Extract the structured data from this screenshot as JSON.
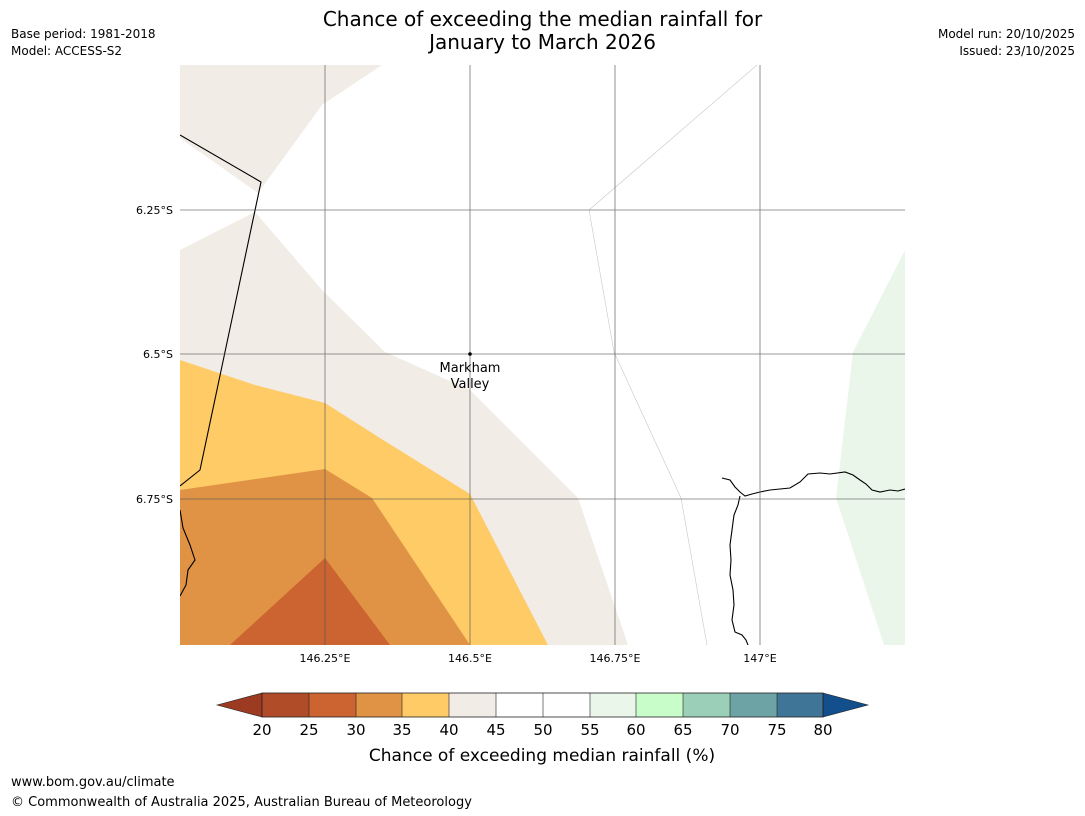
{
  "header": {
    "title_line1": "Chance of exceeding the median rainfall for",
    "title_line2": "January to March 2026",
    "base_period": "Base period: 1981-2018",
    "model": "Model: ACCESS-S2",
    "model_run": "Model run: 20/10/2025",
    "issued": "Issued: 23/10/2025"
  },
  "map": {
    "place_label_line1": "Markham",
    "place_label_line2": "Valley",
    "lat_ticks": [
      "6.25°S",
      "6.5°S",
      "6.75°S"
    ],
    "lon_ticks": [
      "146.25°E",
      "146.5°E",
      "146.75°E",
      "147°E"
    ]
  },
  "legend": {
    "title": "Chance of exceeding median rainfall (%)",
    "ticks": [
      "20",
      "25",
      "30",
      "35",
      "40",
      "45",
      "50",
      "55",
      "60",
      "65",
      "70",
      "75",
      "80"
    ],
    "colors": {
      "below_20": "#9c3a22",
      "c20_25": "#b04c28",
      "c25_30": "#cc6431",
      "c30_35": "#e09345",
      "c35_40": "#fecb66",
      "c40_45": "#f1ece6",
      "c45_50": "#ffffff",
      "c50_55": "#ffffff",
      "c55_60": "#eaf6ea",
      "c60_65": "#c8fcc8",
      "c65_70": "#9ccfb8",
      "c70_75": "#6ea3a6",
      "c75_80": "#3f7698",
      "above_80": "#134f8c"
    }
  },
  "footer": {
    "url": "www.bom.gov.au/climate",
    "copyright": "© Commonwealth of Australia 2025, Australian Bureau of Meteorology"
  }
}
